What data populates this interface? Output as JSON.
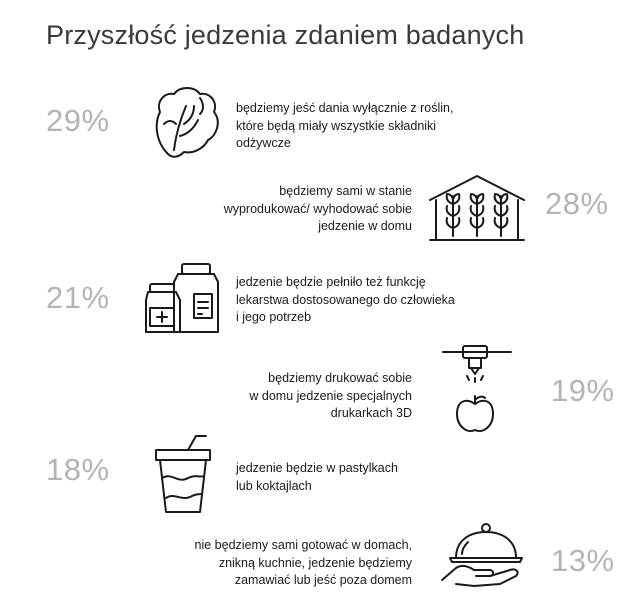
{
  "title": "Przyszłość jedzenia zdaniem badanych",
  "items": [
    {
      "percent": "29%",
      "icon": "lettuce-icon",
      "lines": [
        "będziemy jeść dania wyłącznie z roślin,",
        "które będą miały wszystkie składniki",
        "odżywcze"
      ]
    },
    {
      "percent": "28%",
      "icon": "greenhouse-icon",
      "lines": [
        "będziemy sami w stanie",
        "wyprodukować/ wyhodować sobie",
        "jedzenie w domu"
      ]
    },
    {
      "percent": "21%",
      "icon": "medicine-bottles-icon",
      "lines": [
        "jedzenie będzie pełniło też funkcję",
        "lekarstwa dostosowanego do człowieka",
        "i jego potrzeb"
      ]
    },
    {
      "percent": "19%",
      "icon": "3d-printer-apple-icon",
      "lines": [
        "będziemy drukować sobie",
        "w domu jedzenie specjalnych",
        "drukarkach 3D"
      ]
    },
    {
      "percent": "18%",
      "icon": "drink-cup-icon",
      "lines": [
        "jedzenie będzie w pastylkach",
        "lub koktajlach"
      ]
    },
    {
      "percent": "13%",
      "icon": "serving-cloche-icon",
      "lines": [
        "nie będziemy sami gotować w domach,",
        "znikną kuchnie, jedzenie będziemy",
        "zamawiać lub jeść poza domem"
      ]
    }
  ]
}
